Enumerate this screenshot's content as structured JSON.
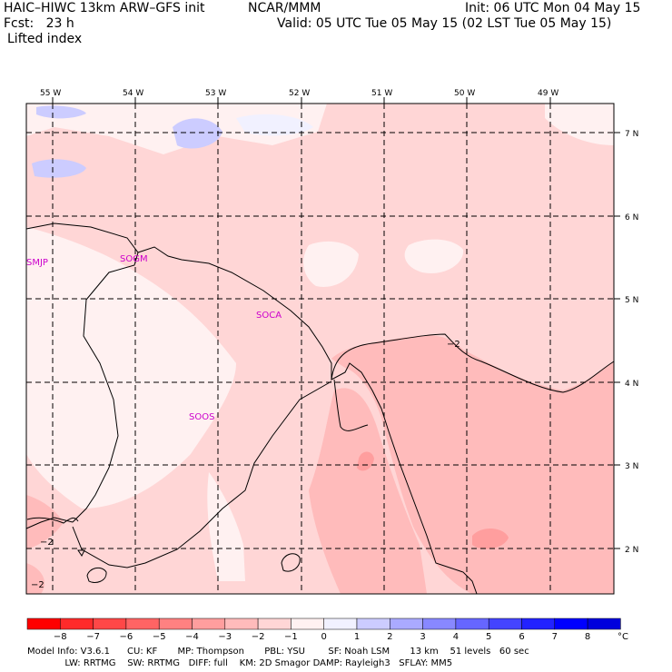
{
  "header": {
    "model": "HAIC–HIWC 13km ARW–GFS init",
    "org": "NCAR/MMM",
    "init": "Init: 06 UTC Mon 04 May 15",
    "fcst": "Fcst:   23 h",
    "valid": "Valid: 05 UTC Tue 05 May 15 (02 LST Tue 05 May 15)",
    "field": "Lifted index"
  },
  "map": {
    "lon_labels": [
      "55 W",
      "54 W",
      "53 W",
      "52 W",
      "51 W",
      "50 W",
      "49 W"
    ],
    "lat_labels": [
      "7 N",
      "6 N",
      "5 N",
      "4 N",
      "3 N",
      "2 N"
    ],
    "stations": [
      "SMJP",
      "SOGM",
      "SOCA",
      "SOOS"
    ],
    "contour_labels": [
      "−2",
      "−2",
      "−2"
    ]
  },
  "colorbar": {
    "ticks": [
      "−8",
      "−7",
      "−6",
      "−5",
      "−4",
      "−3",
      "−2",
      "−1",
      "0",
      "1",
      "2",
      "3",
      "4",
      "5",
      "6",
      "7",
      "8"
    ],
    "unit": "°C",
    "colors": [
      "#ff0000",
      "#ff2a2a",
      "#ff4747",
      "#ff6464",
      "#ff8181",
      "#ff9e9e",
      "#ffbbbb",
      "#ffd6d6",
      "#fff1f1",
      "#f1f1ff",
      "#ccccff",
      "#aaaaff",
      "#8888ff",
      "#6666ff",
      "#4444ff",
      "#2222ff",
      "#0000ff",
      "#0000dd"
    ]
  },
  "footer": {
    "line1": "Model Info: V3.6.1      CU: KF       MP: Thompson       PBL: YSU        SF: Noah LSM       13 km    51 levels   60 sec",
    "line2": "             LW: RRTMG    SW: RRTMG   DIFF: full    KM: 2D Smagor DAMP: Rayleigh3   SFLAY: MM5"
  }
}
